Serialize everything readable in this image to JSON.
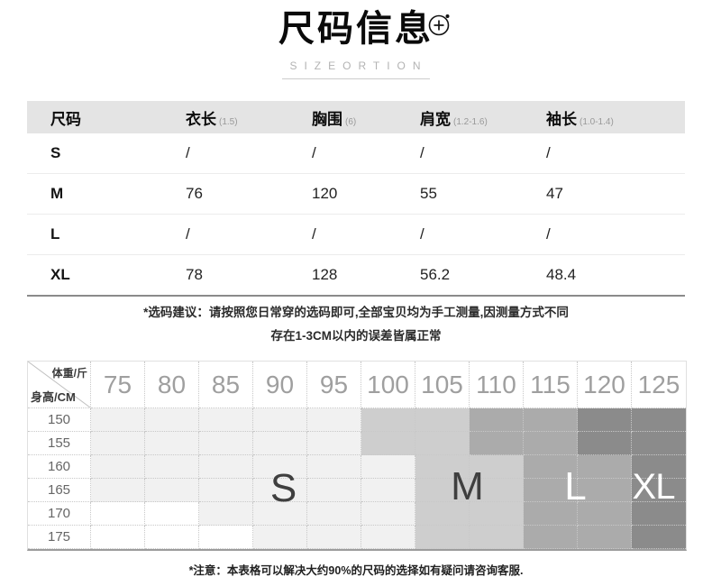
{
  "page": {
    "title": "尺码信息",
    "subtitle": "SIZEORTION",
    "advice_line1": "*选码建议：请按照您日常穿的选码即可,全部宝贝均为手工测量,因测量方式不同",
    "advice_line2": "存在1-3CM以内的误差皆属正常",
    "footer_note": "*注意：本表格可以解决大约90%的尺码的选择如有疑问请咨询客服."
  },
  "size_table": {
    "columns": [
      {
        "label": "尺码",
        "note": ""
      },
      {
        "label": "衣长",
        "note": "(1.5)"
      },
      {
        "label": "胸围",
        "note": "(6)"
      },
      {
        "label": "肩宽",
        "note": "(1.2-1.6)"
      },
      {
        "label": "袖长",
        "note": "(1.0-1.4)"
      }
    ],
    "rows": [
      {
        "size": "S",
        "values": [
          "/",
          "/",
          "/",
          "/"
        ]
      },
      {
        "size": "M",
        "values": [
          "76",
          "120",
          "55",
          "47"
        ]
      },
      {
        "size": "L",
        "values": [
          "/",
          "/",
          "/",
          "/"
        ]
      },
      {
        "size": "XL",
        "values": [
          "78",
          "128",
          "56.2",
          "48.4"
        ]
      }
    ]
  },
  "fit_chart": {
    "corner_top_right": "体重/斤",
    "corner_bottom_left": "身高/CM",
    "weight_columns": [
      "75",
      "80",
      "85",
      "90",
      "95",
      "100",
      "105",
      "110",
      "115",
      "120",
      "125"
    ],
    "height_rows": [
      "150",
      "155",
      "160",
      "165",
      "170",
      "175"
    ],
    "matrix": [
      [
        "S",
        "S",
        "S",
        "S",
        "S",
        "M",
        "M",
        "L",
        "L",
        "XL",
        "XL"
      ],
      [
        "S",
        "S",
        "S",
        "S",
        "S",
        "M",
        "M",
        "L",
        "L",
        "XL",
        "XL"
      ],
      [
        "S",
        "S",
        "S",
        "S",
        "S",
        "S",
        "M",
        "M",
        "L",
        "L",
        "XL"
      ],
      [
        "S",
        "S",
        "S",
        "S",
        "S",
        "S",
        "M",
        "M",
        "L",
        "L",
        "XL"
      ],
      [
        "",
        "",
        "S",
        "S",
        "S",
        "S",
        "M",
        "M",
        "L",
        "L",
        "XL"
      ],
      [
        "",
        "",
        "",
        "S",
        "S",
        "S",
        "M",
        "M",
        "L",
        "L",
        "XL"
      ]
    ],
    "regions": {
      "S": {
        "label": "S",
        "fill": "#f1f1f1",
        "label_color": "#3f3f3f"
      },
      "M": {
        "label": "M",
        "fill": "#cecece",
        "label_color": "#3f3f3f"
      },
      "L": {
        "label": "L",
        "fill": "#ababab",
        "label_color": "#ffffff"
      },
      "XL": {
        "label": "XL",
        "fill": "#8b8b8b",
        "label_color": "#ffffff"
      },
      "none_fill": "#ffffff"
    }
  }
}
